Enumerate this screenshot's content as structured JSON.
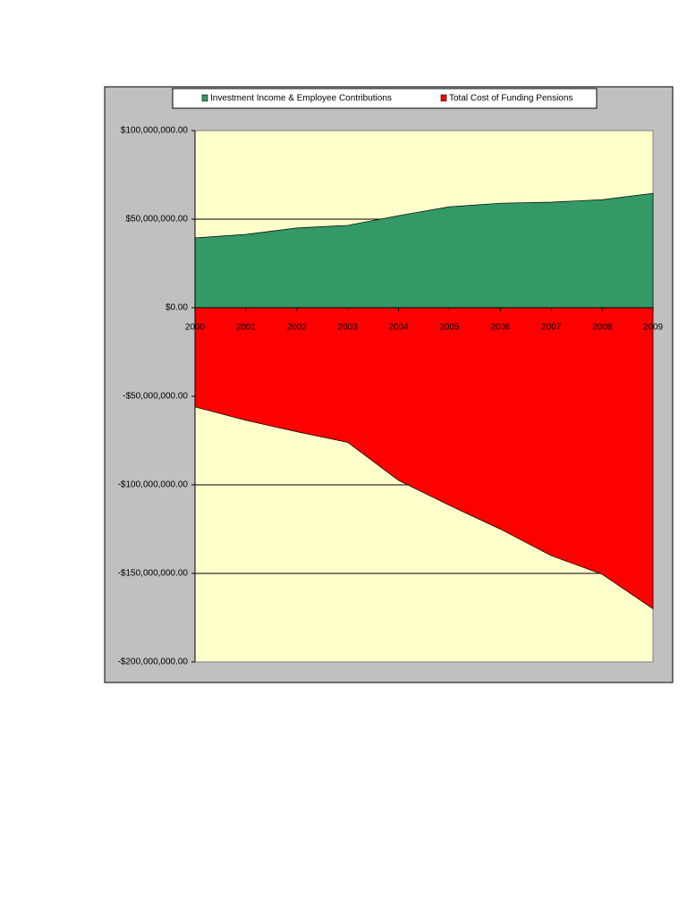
{
  "chart_data": {
    "type": "area",
    "categories": [
      "2000",
      "2001",
      "2002",
      "2003",
      "2004",
      "2005",
      "2006",
      "2007",
      "2008",
      "2009"
    ],
    "series": [
      {
        "name": "Investment Income & Employee Contributions",
        "color": "#339966",
        "values": [
          39400000,
          41400000,
          45000000,
          46500000,
          52000000,
          57000000,
          59000000,
          59600000,
          61000000,
          64600000
        ]
      },
      {
        "name": "Total Cost of Funding Pensions",
        "color": "#ff0000",
        "values": [
          -56000000,
          -63600000,
          -70000000,
          -76000000,
          -97500000,
          -111600000,
          -125000000,
          -140000000,
          -150500000,
          -170000000
        ]
      }
    ],
    "ylim": [
      -200000000,
      100000000
    ],
    "yticks": [
      {
        "value": -200000000,
        "label": "-$200,000,000.00"
      },
      {
        "value": -150000000,
        "label": "-$150,000,000.00"
      },
      {
        "value": -100000000,
        "label": "-$100,000,000.00"
      },
      {
        "value": -50000000,
        "label": "-$50,000,000.00"
      },
      {
        "value": 0,
        "label": "$0.00"
      },
      {
        "value": 50000000,
        "label": "$50,000,000.00"
      },
      {
        "value": 100000000,
        "label": "$100,000,000.00"
      }
    ],
    "grid": true,
    "legend": "top"
  }
}
